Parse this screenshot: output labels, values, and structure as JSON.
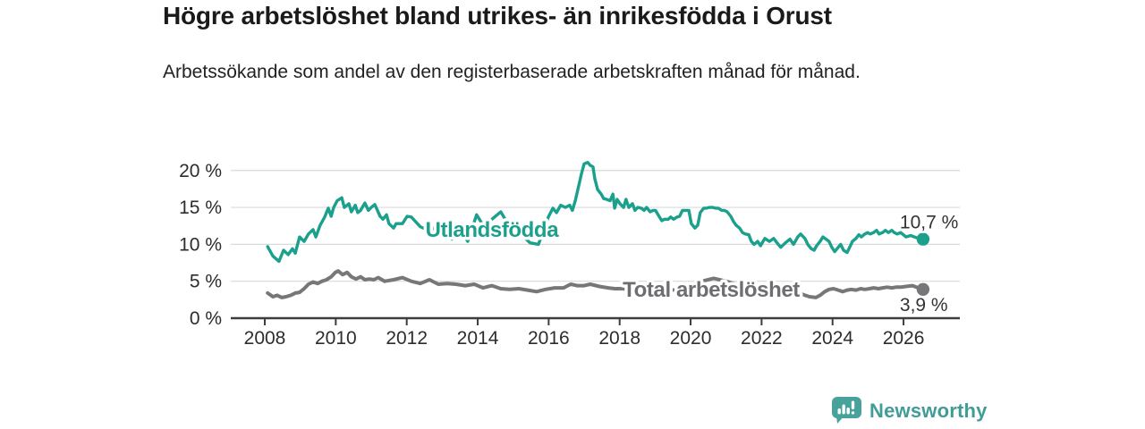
{
  "header": {
    "title": "Högre arbetslöshet bland utrikes- än inrikesfödda i Orust",
    "subtitle": "Arbetssökande som andel av den registerbaserade arbetskraften månad för månad."
  },
  "footer": {
    "brand": "Newsworthy",
    "brand_color": "#3f9c96",
    "icon": "newsworthy-bar-chart-bubble-icon",
    "icon_color": "#46a29b"
  },
  "chart_data": {
    "type": "line",
    "title": "Högre arbetslöshet bland utrikes- än inrikesfödda i Orust",
    "subtitle": "Arbetssökande som andel av den registerbaserade arbetskraften månad för månad.",
    "unit": "%",
    "grid": true,
    "legend": "inline-labels",
    "x_axis": {
      "ticks": [
        2008,
        2010,
        2012,
        2014,
        2016,
        2018,
        2020,
        2022,
        2024,
        2026
      ],
      "tick_labels": [
        "2008",
        "2010",
        "2012",
        "2014",
        "2016",
        "2018",
        "2020",
        "2022",
        "2024",
        "2026"
      ],
      "range": [
        2007.0,
        2027.6
      ]
    },
    "y_axis": {
      "ticks": [
        0,
        5,
        10,
        15,
        20
      ],
      "tick_labels": [
        "0 %",
        "5 %",
        "10 %",
        "15 %",
        "20 %"
      ],
      "range": [
        0,
        21.5
      ]
    },
    "series": [
      {
        "id": "utlandsfodda",
        "name": "Utlandsfödda",
        "color": "#1aa08c",
        "stroke_width": 3.4,
        "end_value": 10.7,
        "end_label": "10,7 %",
        "end_label_position": "above",
        "inline_label": {
          "x_year": 2014.4,
          "y_pct": 11.0
        },
        "points": [
          [
            2008.08,
            9.7
          ],
          [
            2008.23,
            8.4
          ],
          [
            2008.4,
            7.7
          ],
          [
            2008.53,
            9.2
          ],
          [
            2008.66,
            8.6
          ],
          [
            2008.78,
            9.4
          ],
          [
            2008.86,
            8.8
          ],
          [
            2008.98,
            11.0
          ],
          [
            2009.11,
            10.4
          ],
          [
            2009.23,
            11.4
          ],
          [
            2009.36,
            12.0
          ],
          [
            2009.44,
            11.0
          ],
          [
            2009.56,
            12.6
          ],
          [
            2009.69,
            13.7
          ],
          [
            2009.79,
            14.9
          ],
          [
            2009.87,
            13.8
          ],
          [
            2009.94,
            15.0
          ],
          [
            2010.04,
            15.9
          ],
          [
            2010.17,
            16.3
          ],
          [
            2010.24,
            15.0
          ],
          [
            2010.37,
            15.5
          ],
          [
            2010.44,
            14.4
          ],
          [
            2010.55,
            15.3
          ],
          [
            2010.62,
            14.3
          ],
          [
            2010.7,
            14.6
          ],
          [
            2010.82,
            15.6
          ],
          [
            2010.92,
            14.6
          ],
          [
            2011.0,
            15.0
          ],
          [
            2011.1,
            15.4
          ],
          [
            2011.25,
            13.8
          ],
          [
            2011.33,
            13.4
          ],
          [
            2011.43,
            14.0
          ],
          [
            2011.5,
            12.8
          ],
          [
            2011.63,
            12.2
          ],
          [
            2011.7,
            12.8
          ],
          [
            2011.88,
            12.8
          ],
          [
            2012.01,
            13.8
          ],
          [
            2012.13,
            13.7
          ],
          [
            2012.38,
            12.4
          ],
          [
            2012.64,
            11.8
          ],
          [
            2012.89,
            12.6
          ],
          [
            2013.14,
            11.2
          ],
          [
            2013.27,
            10.7
          ],
          [
            2013.52,
            12.0
          ],
          [
            2013.72,
            10.4
          ],
          [
            2013.97,
            14.0
          ],
          [
            2014.15,
            12.6
          ],
          [
            2014.4,
            13.4
          ],
          [
            2014.65,
            14.4
          ],
          [
            2014.9,
            12.4
          ],
          [
            2015.16,
            11.6
          ],
          [
            2015.48,
            10.2
          ],
          [
            2015.71,
            10.0
          ],
          [
            2015.84,
            11.6
          ],
          [
            2015.99,
            13.7
          ],
          [
            2016.12,
            14.9
          ],
          [
            2016.22,
            14.3
          ],
          [
            2016.34,
            15.3
          ],
          [
            2016.47,
            15.0
          ],
          [
            2016.59,
            15.3
          ],
          [
            2016.67,
            14.6
          ],
          [
            2016.75,
            15.9
          ],
          [
            2016.85,
            18.0
          ],
          [
            2016.92,
            19.5
          ],
          [
            2017.0,
            20.9
          ],
          [
            2017.1,
            21.1
          ],
          [
            2017.17,
            20.7
          ],
          [
            2017.25,
            20.5
          ],
          [
            2017.3,
            18.9
          ],
          [
            2017.38,
            17.4
          ],
          [
            2017.48,
            16.8
          ],
          [
            2017.55,
            16.2
          ],
          [
            2017.63,
            16.1
          ],
          [
            2017.73,
            15.9
          ],
          [
            2017.81,
            16.8
          ],
          [
            2017.86,
            14.9
          ],
          [
            2017.93,
            16.1
          ],
          [
            2018.01,
            15.5
          ],
          [
            2018.11,
            15.0
          ],
          [
            2018.18,
            16.1
          ],
          [
            2018.26,
            15.0
          ],
          [
            2018.36,
            15.5
          ],
          [
            2018.43,
            14.6
          ],
          [
            2018.51,
            15.0
          ],
          [
            2018.61,
            14.9
          ],
          [
            2018.69,
            14.6
          ],
          [
            2018.76,
            15.0
          ],
          [
            2018.86,
            14.4
          ],
          [
            2018.94,
            14.6
          ],
          [
            2019.01,
            14.6
          ],
          [
            2019.11,
            13.8
          ],
          [
            2019.19,
            13.2
          ],
          [
            2019.26,
            13.4
          ],
          [
            2019.37,
            13.4
          ],
          [
            2019.44,
            13.7
          ],
          [
            2019.52,
            13.4
          ],
          [
            2019.62,
            13.7
          ],
          [
            2019.69,
            13.8
          ],
          [
            2019.77,
            14.6
          ],
          [
            2019.87,
            14.6
          ],
          [
            2019.95,
            14.6
          ],
          [
            2020.02,
            12.8
          ],
          [
            2020.12,
            12.2
          ],
          [
            2020.2,
            12.6
          ],
          [
            2020.27,
            14.3
          ],
          [
            2020.37,
            14.9
          ],
          [
            2020.45,
            14.9
          ],
          [
            2020.52,
            15.0
          ],
          [
            2020.63,
            15.0
          ],
          [
            2020.7,
            14.9
          ],
          [
            2020.78,
            14.9
          ],
          [
            2020.88,
            14.6
          ],
          [
            2020.95,
            14.6
          ],
          [
            2021.03,
            14.4
          ],
          [
            2021.13,
            13.8
          ],
          [
            2021.21,
            13.1
          ],
          [
            2021.28,
            12.6
          ],
          [
            2021.38,
            12.2
          ],
          [
            2021.46,
            11.6
          ],
          [
            2021.54,
            11.4
          ],
          [
            2021.64,
            11.3
          ],
          [
            2021.71,
            10.4
          ],
          [
            2021.79,
            10.0
          ],
          [
            2021.89,
            10.4
          ],
          [
            2021.97,
            9.8
          ],
          [
            2022.09,
            10.8
          ],
          [
            2022.22,
            10.4
          ],
          [
            2022.34,
            10.8
          ],
          [
            2022.47,
            10.0
          ],
          [
            2022.54,
            9.6
          ],
          [
            2022.67,
            10.2
          ],
          [
            2022.8,
            10.7
          ],
          [
            2022.9,
            10.0
          ],
          [
            2023.02,
            11.0
          ],
          [
            2023.1,
            11.4
          ],
          [
            2023.22,
            10.8
          ],
          [
            2023.3,
            10.0
          ],
          [
            2023.4,
            9.4
          ],
          [
            2023.48,
            9.2
          ],
          [
            2023.55,
            9.8
          ],
          [
            2023.65,
            10.4
          ],
          [
            2023.73,
            11.0
          ],
          [
            2023.9,
            10.4
          ],
          [
            2023.98,
            9.6
          ],
          [
            2024.06,
            9.0
          ],
          [
            2024.16,
            9.6
          ],
          [
            2024.23,
            10.0
          ],
          [
            2024.31,
            9.2
          ],
          [
            2024.41,
            8.9
          ],
          [
            2024.48,
            9.6
          ],
          [
            2024.56,
            10.4
          ],
          [
            2024.66,
            10.8
          ],
          [
            2024.74,
            11.3
          ],
          [
            2024.81,
            11.0
          ],
          [
            2024.91,
            11.4
          ],
          [
            2024.99,
            11.6
          ],
          [
            2025.06,
            11.4
          ],
          [
            2025.16,
            11.6
          ],
          [
            2025.24,
            11.9
          ],
          [
            2025.31,
            11.4
          ],
          [
            2025.41,
            11.6
          ],
          [
            2025.49,
            11.9
          ],
          [
            2025.57,
            11.6
          ],
          [
            2025.67,
            11.9
          ],
          [
            2025.74,
            11.6
          ],
          [
            2025.82,
            11.4
          ],
          [
            2025.92,
            11.6
          ],
          [
            2026.07,
            11.0
          ],
          [
            2026.2,
            11.2
          ],
          [
            2026.42,
            10.8
          ],
          [
            2026.55,
            10.7
          ]
        ]
      },
      {
        "id": "total",
        "name": "Total arbetslöshet",
        "color": "#77777a",
        "label_color": "#6e6e72",
        "stroke_width": 4,
        "end_value": 3.9,
        "end_label": "3,9 %",
        "end_label_position": "below",
        "inline_label": {
          "x_year": 2020.58,
          "y_pct": 2.9
        },
        "points": [
          [
            2008.08,
            3.4
          ],
          [
            2008.23,
            2.9
          ],
          [
            2008.35,
            3.1
          ],
          [
            2008.48,
            2.8
          ],
          [
            2008.6,
            2.9
          ],
          [
            2008.73,
            3.1
          ],
          [
            2008.86,
            3.4
          ],
          [
            2008.98,
            3.5
          ],
          [
            2009.11,
            4.0
          ],
          [
            2009.23,
            4.6
          ],
          [
            2009.36,
            4.9
          ],
          [
            2009.49,
            4.7
          ],
          [
            2009.61,
            5.0
          ],
          [
            2009.74,
            5.2
          ],
          [
            2009.87,
            5.6
          ],
          [
            2009.99,
            6.2
          ],
          [
            2010.07,
            6.4
          ],
          [
            2010.19,
            5.9
          ],
          [
            2010.32,
            6.2
          ],
          [
            2010.44,
            5.6
          ],
          [
            2010.57,
            5.3
          ],
          [
            2010.7,
            5.6
          ],
          [
            2010.82,
            5.2
          ],
          [
            2010.95,
            5.3
          ],
          [
            2011.07,
            5.2
          ],
          [
            2011.2,
            5.5
          ],
          [
            2011.38,
            5.0
          ],
          [
            2011.63,
            5.2
          ],
          [
            2011.88,
            5.5
          ],
          [
            2012.13,
            5.0
          ],
          [
            2012.38,
            4.7
          ],
          [
            2012.64,
            5.2
          ],
          [
            2012.89,
            4.6
          ],
          [
            2013.14,
            4.7
          ],
          [
            2013.39,
            4.6
          ],
          [
            2013.65,
            4.4
          ],
          [
            2013.9,
            4.6
          ],
          [
            2014.15,
            4.1
          ],
          [
            2014.4,
            4.4
          ],
          [
            2014.65,
            4.0
          ],
          [
            2014.9,
            3.9
          ],
          [
            2015.16,
            4.0
          ],
          [
            2015.41,
            3.8
          ],
          [
            2015.66,
            3.6
          ],
          [
            2015.91,
            3.9
          ],
          [
            2016.17,
            4.1
          ],
          [
            2016.42,
            4.1
          ],
          [
            2016.62,
            4.6
          ],
          [
            2016.8,
            4.4
          ],
          [
            2017.0,
            4.4
          ],
          [
            2017.17,
            4.6
          ],
          [
            2017.43,
            4.3
          ],
          [
            2017.68,
            4.1
          ],
          [
            2017.86,
            4.0
          ],
          [
            2018.06,
            4.0
          ],
          [
            2018.43,
            3.9
          ],
          [
            2018.81,
            4.0
          ],
          [
            2019.19,
            3.9
          ],
          [
            2019.57,
            3.8
          ],
          [
            2019.95,
            4.1
          ],
          [
            2020.32,
            5.0
          ],
          [
            2020.65,
            5.4
          ],
          [
            2021.0,
            5.0
          ],
          [
            2021.35,
            4.5
          ],
          [
            2021.71,
            4.1
          ],
          [
            2022.09,
            4.0
          ],
          [
            2022.47,
            4.0
          ],
          [
            2022.72,
            3.8
          ],
          [
            2022.97,
            3.5
          ],
          [
            2023.17,
            3.2
          ],
          [
            2023.35,
            2.9
          ],
          [
            2023.53,
            2.8
          ],
          [
            2023.65,
            3.1
          ],
          [
            2023.78,
            3.6
          ],
          [
            2023.9,
            3.9
          ],
          [
            2024.03,
            4.0
          ],
          [
            2024.16,
            3.8
          ],
          [
            2024.29,
            3.6
          ],
          [
            2024.41,
            3.8
          ],
          [
            2024.53,
            3.9
          ],
          [
            2024.66,
            3.8
          ],
          [
            2024.79,
            4.0
          ],
          [
            2024.91,
            3.9
          ],
          [
            2025.04,
            4.0
          ],
          [
            2025.16,
            4.1
          ],
          [
            2025.29,
            4.0
          ],
          [
            2025.41,
            4.1
          ],
          [
            2025.54,
            4.2
          ],
          [
            2025.67,
            4.1
          ],
          [
            2025.79,
            4.2
          ],
          [
            2025.92,
            4.2
          ],
          [
            2026.07,
            4.3
          ],
          [
            2026.25,
            4.4
          ],
          [
            2026.42,
            4.1
          ],
          [
            2026.55,
            3.9
          ]
        ]
      }
    ]
  }
}
